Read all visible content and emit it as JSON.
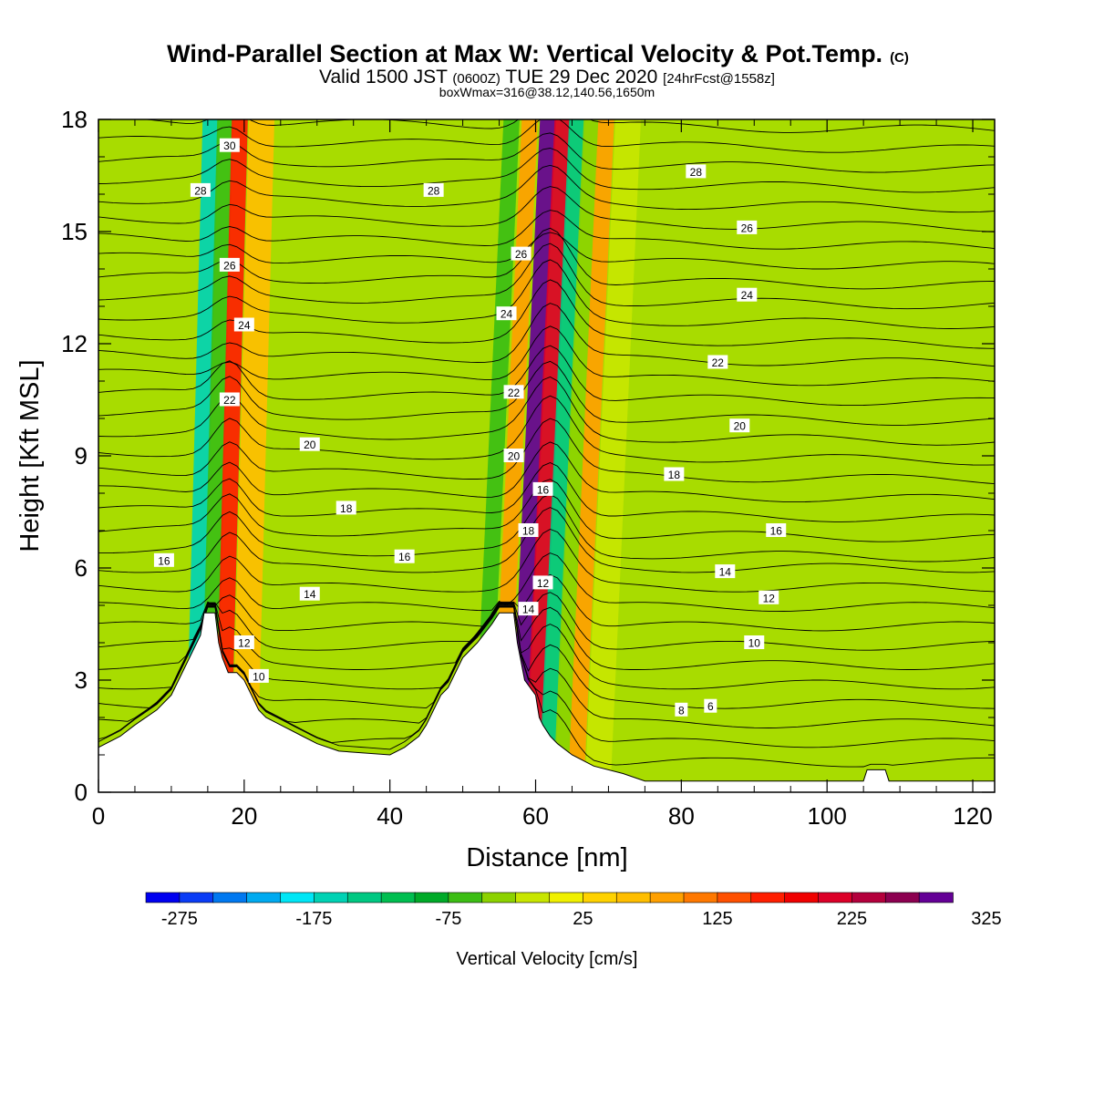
{
  "title": {
    "main": "Wind-Parallel Section at Max W: Vertical Velocity & Pot.Temp.",
    "copyright": "(C)",
    "valid_prefix": "Valid 1500 JST",
    "valid_utc": "(0600Z)",
    "valid_date": "TUE 29 Dec 2020",
    "forecast": "[24hrFcst@1558z]",
    "box_info": "boxWmax=316@38.12,140.56,1650m"
  },
  "chart_data": {
    "type": "heatmap",
    "xlabel": "Distance [nm]",
    "ylabel": "Height [Kft MSL]",
    "xlim": [
      0,
      123
    ],
    "ylim": [
      0,
      18
    ],
    "x_ticks": [
      "0",
      "20",
      "40",
      "60",
      "80",
      "100",
      "120"
    ],
    "y_ticks": [
      "0",
      "3",
      "6",
      "9",
      "12",
      "15",
      "18"
    ],
    "colorbar": {
      "label": "Vertical Velocity [cm/s]",
      "tick_labels": [
        "-275",
        "-175",
        "-75",
        "25",
        "125",
        "225",
        "325"
      ],
      "colors": [
        "#0000f0",
        "#0a3cf6",
        "#0078f0",
        "#00aaf0",
        "#00e6f6",
        "#00d2b4",
        "#00c882",
        "#00be50",
        "#00aa28",
        "#3cbe14",
        "#8cd200",
        "#c8e600",
        "#f0f000",
        "#ffd200",
        "#ffbe00",
        "#ffa000",
        "#ff7800",
        "#ff5000",
        "#ff1e00",
        "#f00000",
        "#dc0028",
        "#b4003c",
        "#8c0050",
        "#640096"
      ]
    },
    "terrain_kft": [
      [
        0,
        1.2
      ],
      [
        3,
        1.5
      ],
      [
        5,
        1.8
      ],
      [
        8,
        2.2
      ],
      [
        10,
        2.6
      ],
      [
        11,
        3.0
      ],
      [
        12,
        3.4
      ],
      [
        13,
        3.8
      ],
      [
        14,
        4.2
      ],
      [
        14.5,
        4.8
      ],
      [
        16,
        4.8
      ],
      [
        16.5,
        4.0
      ],
      [
        17,
        3.6
      ],
      [
        17.8,
        3.2
      ],
      [
        19,
        3.2
      ],
      [
        20,
        3.0
      ],
      [
        21,
        2.6
      ],
      [
        22,
        2.2
      ],
      [
        23,
        2.0
      ],
      [
        25,
        1.8
      ],
      [
        28,
        1.5
      ],
      [
        30,
        1.3
      ],
      [
        33,
        1.1
      ],
      [
        40,
        1.0
      ],
      [
        42,
        1.2
      ],
      [
        44,
        1.5
      ],
      [
        45,
        1.8
      ],
      [
        46,
        2.2
      ],
      [
        47,
        2.6
      ],
      [
        48,
        2.8
      ],
      [
        49,
        3.2
      ],
      [
        50,
        3.6
      ],
      [
        52,
        4.0
      ],
      [
        54,
        4.5
      ],
      [
        55,
        4.8
      ],
      [
        57,
        4.8
      ],
      [
        57.5,
        4.0
      ],
      [
        58,
        3.5
      ],
      [
        58.5,
        3.0
      ],
      [
        60,
        2.6
      ],
      [
        60.5,
        2.0
      ],
      [
        61,
        1.8
      ],
      [
        62,
        1.5
      ],
      [
        63,
        1.3
      ],
      [
        65,
        1.0
      ],
      [
        68,
        0.7
      ],
      [
        72,
        0.5
      ],
      [
        75,
        0.3
      ],
      [
        105,
        0.3
      ],
      [
        105.5,
        0.6
      ],
      [
        108,
        0.6
      ],
      [
        108.5,
        0.3
      ],
      [
        123,
        0.3
      ]
    ],
    "updraft_bands": [
      {
        "x_center": 15,
        "w_cms": -180
      },
      {
        "x_center": 17,
        "w_cms": -90
      },
      {
        "x_center": 19,
        "w_cms": 130
      },
      {
        "x_center": 22,
        "w_cms": 40
      },
      {
        "x_center": 56,
        "w_cms": -90
      },
      {
        "x_center": 58.5,
        "w_cms": 60
      },
      {
        "x_center": 61,
        "w_cms": 260
      },
      {
        "x_center": 63,
        "w_cms": 190
      },
      {
        "x_center": 65,
        "w_cms": -160
      },
      {
        "x_center": 67,
        "w_cms": -60
      },
      {
        "x_center": 69,
        "w_cms": 60
      },
      {
        "x_center": 72,
        "w_cms": -30
      }
    ],
    "theta_contours": [
      {
        "label": "6",
        "x": 84,
        "y": 2.3
      },
      {
        "label": "8",
        "x": 80,
        "y": 2.2
      },
      {
        "label": "10",
        "x": 22,
        "y": 3.1
      },
      {
        "label": "10",
        "x": 90,
        "y": 4.0
      },
      {
        "label": "12",
        "x": 20,
        "y": 4.0
      },
      {
        "label": "12",
        "x": 92,
        "y": 5.2
      },
      {
        "label": "12",
        "x": 61,
        "y": 5.6
      },
      {
        "label": "14",
        "x": 29,
        "y": 5.3
      },
      {
        "label": "14",
        "x": 59,
        "y": 4.9
      },
      {
        "label": "14",
        "x": 86,
        "y": 5.9
      },
      {
        "label": "16",
        "x": 9,
        "y": 6.2
      },
      {
        "label": "16",
        "x": 42,
        "y": 6.3
      },
      {
        "label": "16",
        "x": 61,
        "y": 8.1
      },
      {
        "label": "16",
        "x": 93,
        "y": 7.0
      },
      {
        "label": "18",
        "x": 34,
        "y": 7.6
      },
      {
        "label": "18",
        "x": 59,
        "y": 7.0
      },
      {
        "label": "18",
        "x": 79,
        "y": 8.5
      },
      {
        "label": "20",
        "x": 29,
        "y": 9.3
      },
      {
        "label": "20",
        "x": 57,
        "y": 9.0
      },
      {
        "label": "20",
        "x": 88,
        "y": 9.8
      },
      {
        "label": "22",
        "x": 18,
        "y": 10.5
      },
      {
        "label": "22",
        "x": 57,
        "y": 10.7
      },
      {
        "label": "22",
        "x": 85,
        "y": 11.5
      },
      {
        "label": "24",
        "x": 20,
        "y": 12.5
      },
      {
        "label": "24",
        "x": 56,
        "y": 12.8
      },
      {
        "label": "24",
        "x": 89,
        "y": 13.3
      },
      {
        "label": "26",
        "x": 18,
        "y": 14.1
      },
      {
        "label": "26",
        "x": 58,
        "y": 14.4
      },
      {
        "label": "26",
        "x": 89,
        "y": 15.1
      },
      {
        "label": "28",
        "x": 14,
        "y": 16.1
      },
      {
        "label": "28",
        "x": 46,
        "y": 16.1
      },
      {
        "label": "28",
        "x": 82,
        "y": 16.6
      },
      {
        "label": "30",
        "x": 18,
        "y": 17.3
      }
    ]
  }
}
